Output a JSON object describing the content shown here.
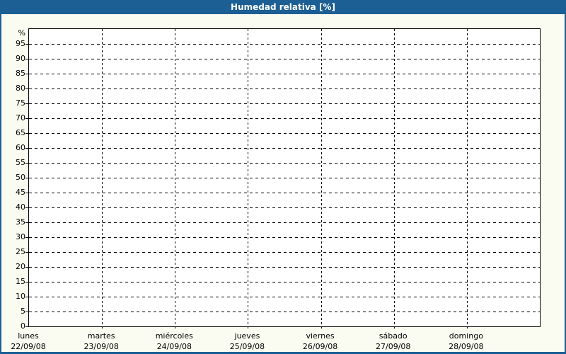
{
  "window": {
    "title": "Humedad relativa [%]"
  },
  "colors": {
    "frame_blue": "#1c5f94",
    "content_background": "#fbfcf1",
    "plot_background": "#ffffff",
    "grid": "#000000",
    "label_text": "#000000",
    "title_text": "#ffffff"
  },
  "chart_data": {
    "type": "line",
    "title": "Humedad relativa [%]",
    "y_axis": {
      "unit_label": "%",
      "min": 0,
      "max": 100,
      "tick_step": 5,
      "tick_values": [
        95,
        90,
        85,
        80,
        75,
        70,
        65,
        60,
        55,
        50,
        45,
        40,
        35,
        30,
        25,
        20,
        15,
        10,
        5,
        0
      ],
      "tick_labels": [
        "95",
        "90",
        "85",
        "80",
        "75",
        "70",
        "65",
        "60",
        "55",
        "50",
        "45",
        "40",
        "35",
        "30",
        "25",
        "20",
        "15",
        "10",
        "5",
        "0"
      ]
    },
    "x_axis": {
      "days": [
        {
          "name": "lunes",
          "date": "22/09/08"
        },
        {
          "name": "martes",
          "date": "23/09/08"
        },
        {
          "name": "miércoles",
          "date": "24/09/08"
        },
        {
          "name": "jueves",
          "date": "25/09/08"
        },
        {
          "name": "viernes",
          "date": "26/09/08"
        },
        {
          "name": "sábado",
          "date": "27/09/08"
        },
        {
          "name": "domingo",
          "date": "28/09/08"
        }
      ]
    },
    "series": [],
    "grid": {
      "horizontal": "dashed",
      "vertical": "dashed"
    },
    "legend": "none"
  }
}
